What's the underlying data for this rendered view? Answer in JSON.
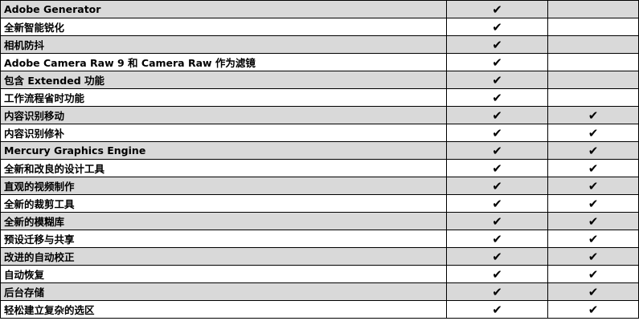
{
  "check_mark": "✔",
  "rows": [
    {
      "feature": "Adobe Generator",
      "col2": true,
      "col3": false
    },
    {
      "feature": "全新智能锐化",
      "col2": true,
      "col3": false
    },
    {
      "feature": "相机防抖",
      "col2": true,
      "col3": false
    },
    {
      "feature": "Adobe Camera Raw 9 和 Camera Raw 作为滤镜",
      "col2": true,
      "col3": false
    },
    {
      "feature": "包含 Extended 功能",
      "col2": true,
      "col3": false
    },
    {
      "feature": "工作流程省时功能",
      "col2": true,
      "col3": false
    },
    {
      "feature": "内容识别移动",
      "col2": true,
      "col3": true
    },
    {
      "feature": "内容识别修补",
      "col2": true,
      "col3": true
    },
    {
      "feature": "Mercury Graphics Engine",
      "col2": true,
      "col3": true
    },
    {
      "feature": "全新和改良的设计工具",
      "col2": true,
      "col3": true
    },
    {
      "feature": "直观的视频制作",
      "col2": true,
      "col3": true
    },
    {
      "feature": "全新的裁剪工具",
      "col2": true,
      "col3": true
    },
    {
      "feature": "全新的模糊库",
      "col2": true,
      "col3": true
    },
    {
      "feature": "预设迁移与共享",
      "col2": true,
      "col3": true
    },
    {
      "feature": "改进的自动校正",
      "col2": true,
      "col3": true
    },
    {
      "feature": "自动恢复",
      "col2": true,
      "col3": true
    },
    {
      "feature": "后台存储",
      "col2": true,
      "col3": true
    },
    {
      "feature": "轻松建立复杂的选区",
      "col2": true,
      "col3": true
    }
  ],
  "colors": {
    "shaded": "#d9d9d9",
    "border": "#000000"
  }
}
